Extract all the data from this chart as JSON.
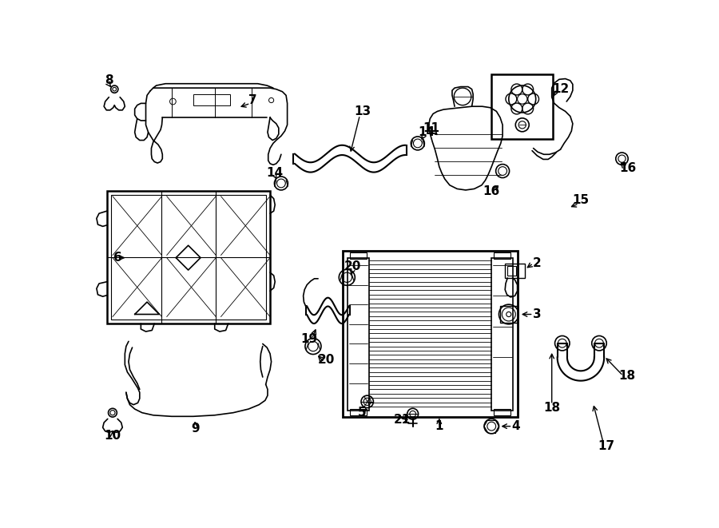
{
  "bg_color": "#ffffff",
  "line_color": "#000000",
  "fig_width": 9.0,
  "fig_height": 6.61,
  "dpi": 100,
  "lw_main": 1.2,
  "lw_thin": 0.7,
  "lw_thick": 1.8
}
